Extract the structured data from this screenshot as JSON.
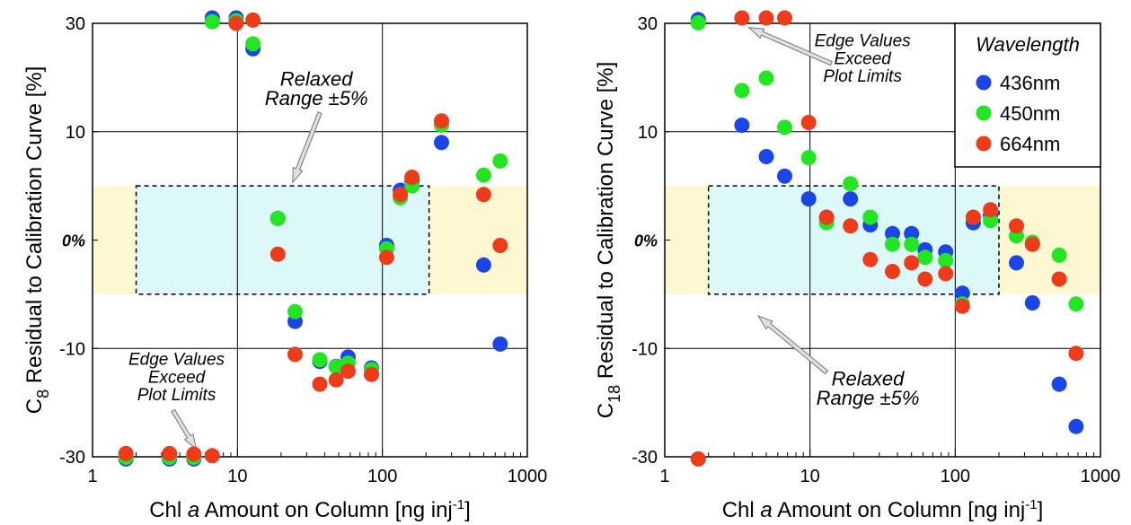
{
  "chart_data": [
    {
      "type": "scatter",
      "panel": "left",
      "x_scale": "log",
      "xlim": [
        1,
        1000
      ],
      "ylim": [
        -30,
        30
      ],
      "grid": true,
      "x_ticks": [
        "1",
        "10",
        "100",
        "1000"
      ],
      "y_ticks": [
        "30",
        "10",
        "0%",
        "-10",
        "-30"
      ],
      "xlabel": {
        "pre": "Chl ",
        "italic": "a",
        "mid": " Amount on Column [ng inj",
        "sup": "-1",
        "post": "]"
      },
      "ylabel": {
        "pre": "C",
        "sub": "8",
        "post": " Residual to Calibration Curve [%]"
      },
      "bands": [
        {
          "name": "yellow-band",
          "x": [
            1,
            1000
          ],
          "y": [
            -5,
            5
          ],
          "color": "#fdf7d2"
        },
        {
          "name": "cyan-box",
          "x": [
            2,
            210
          ],
          "y": [
            -5,
            5
          ],
          "color": "#dcf8f8"
        }
      ],
      "annotations": [
        {
          "name": "relaxed-range",
          "lines": [
            "Relaxed",
            "Range ±5%"
          ],
          "text_at": [
            35,
            18.5
          ],
          "line_gap": 3.6,
          "size": "big",
          "arrow_from": [
            37,
            13.5
          ],
          "arrow_to": [
            24,
            5.3
          ]
        },
        {
          "name": "edge-values",
          "lines": [
            "Edge Values",
            "Exceed",
            "Plot Limits"
          ],
          "text_at": [
            3.8,
            -13
          ],
          "line_gap": 3.3,
          "size": "normal",
          "arrow_from": [
            3.6,
            -21.5
          ],
          "arrow_to": [
            5.2,
            -28.6
          ]
        }
      ],
      "series": [
        {
          "name": "436nm",
          "color": "#1a46e8",
          "points": [
            [
              1.7,
              -30.4
            ],
            [
              3.4,
              -30.4
            ],
            [
              5,
              -30.4
            ],
            [
              6.7,
              31
            ],
            [
              9.8,
              31
            ],
            [
              12.8,
              25.3
            ],
            [
              19,
              2
            ],
            [
              25,
              -7.5
            ],
            [
              37,
              -12.4
            ],
            [
              48,
              -13.3
            ],
            [
              58,
              -11.6
            ],
            [
              84,
              -13.6
            ],
            [
              107,
              -0.5
            ],
            [
              133,
              4.6
            ],
            [
              160,
              5.4
            ],
            [
              256,
              9
            ],
            [
              500,
              -2.3
            ],
            [
              650,
              -9.6
            ]
          ]
        },
        {
          "name": "450nm",
          "color": "#22e622",
          "points": [
            [
              1.7,
              -30.1
            ],
            [
              3.4,
              -30.1
            ],
            [
              5,
              -30.1
            ],
            [
              6.7,
              30.3
            ],
            [
              9.8,
              30.5
            ],
            [
              12.8,
              26.2
            ],
            [
              19,
              2
            ],
            [
              25,
              -6.6
            ],
            [
              37,
              -12.1
            ],
            [
              48,
              -13.4
            ],
            [
              58,
              -12.7
            ],
            [
              84,
              -13.9
            ],
            [
              107,
              -0.8
            ],
            [
              133,
              3.9
            ],
            [
              160,
              5
            ],
            [
              256,
              11.2
            ],
            [
              500,
              6
            ],
            [
              650,
              7.3
            ]
          ]
        },
        {
          "name": "664nm",
          "color": "#ee3b1a",
          "points": [
            [
              1.7,
              -29.4
            ],
            [
              3.4,
              -29.4
            ],
            [
              5,
              -29.5
            ],
            [
              6.7,
              -29.8
            ],
            [
              9.8,
              30
            ],
            [
              12.8,
              30.6
            ],
            [
              19,
              -1.3
            ],
            [
              25,
              -11.1
            ],
            [
              37,
              -16.6
            ],
            [
              48,
              -15.8
            ],
            [
              58,
              -14.2
            ],
            [
              84,
              -14.8
            ],
            [
              107,
              -1.6
            ],
            [
              133,
              4.2
            ],
            [
              160,
              5.8
            ],
            [
              256,
              12
            ],
            [
              500,
              4.2
            ],
            [
              650,
              -0.5
            ]
          ]
        }
      ]
    },
    {
      "type": "scatter",
      "panel": "right",
      "x_scale": "log",
      "xlim": [
        1,
        1000
      ],
      "ylim": [
        -30,
        30
      ],
      "grid": true,
      "x_ticks": [
        "1",
        "10",
        "100",
        "1000"
      ],
      "y_ticks": [
        "30",
        "10",
        "0%",
        "-10",
        "-30"
      ],
      "xlabel": {
        "pre": "Chl ",
        "italic": "a",
        "mid": " Amount on Column [ng inj",
        "sup": "-1",
        "post": "]"
      },
      "ylabel": {
        "pre": "C",
        "sub": "18",
        "post": " Residual to Calibration Curve [%]"
      },
      "legend": {
        "title": "Wavelength",
        "position": "top-right"
      },
      "bands": [
        {
          "name": "yellow-band",
          "x": [
            1,
            1000
          ],
          "y": [
            -5,
            5
          ],
          "color": "#fdf7d2"
        },
        {
          "name": "cyan-box",
          "x": [
            2,
            200
          ],
          "y": [
            -5,
            5
          ],
          "color": "#dcf8f8"
        }
      ],
      "annotations": [
        {
          "name": "edge-values",
          "lines": [
            "Edge Values",
            "Exceed",
            "Plot Limits"
          ],
          "text_at": [
            23,
            25.8
          ],
          "line_gap": 3.3,
          "size": "normal",
          "arrow_from": [
            14,
            22.6
          ],
          "arrow_to": [
            3.8,
            29.2
          ]
        },
        {
          "name": "relaxed-range",
          "lines": [
            "Relaxed",
            "Range ±5%"
          ],
          "text_at": [
            25,
            -16.8
          ],
          "line_gap": 3.6,
          "size": "big",
          "arrow_from": [
            13,
            -14.4
          ],
          "arrow_to": [
            4.4,
            -7
          ]
        }
      ],
      "series": [
        {
          "name": "436nm",
          "color": "#1a46e8",
          "points": [
            [
              1.7,
              30.7
            ],
            [
              3.4,
              11.2
            ],
            [
              5,
              7.7
            ],
            [
              6.7,
              5.9
            ],
            [
              9.8,
              3.8
            ],
            [
              13,
              2.1
            ],
            [
              19,
              3.8
            ],
            [
              26,
              1.4
            ],
            [
              37,
              0.6
            ],
            [
              50,
              0.6
            ],
            [
              62,
              -0.9
            ],
            [
              86,
              -1.1
            ],
            [
              112,
              -4.9
            ],
            [
              133,
              1.6
            ],
            [
              175,
              2.3
            ],
            [
              264,
              -2.1
            ],
            [
              340,
              -5.8
            ],
            [
              520,
              -16.6
            ],
            [
              680,
              -24.4
            ]
          ]
        },
        {
          "name": "450nm",
          "color": "#22e622",
          "points": [
            [
              1.7,
              30.1
            ],
            [
              3.4,
              17.6
            ],
            [
              5,
              19.9
            ],
            [
              6.7,
              10.8
            ],
            [
              9.8,
              7.6
            ],
            [
              13,
              1.6
            ],
            [
              19,
              5.2
            ],
            [
              26,
              2.1
            ],
            [
              37,
              -0.4
            ],
            [
              50,
              -0.4
            ],
            [
              62,
              -1.6
            ],
            [
              86,
              -1.9
            ],
            [
              112,
              -5.9
            ],
            [
              133,
              2.1
            ],
            [
              175,
              1.8
            ],
            [
              264,
              0.4
            ],
            [
              340,
              -0.2
            ],
            [
              520,
              -1.4
            ],
            [
              680,
              -5.9
            ]
          ]
        },
        {
          "name": "664nm",
          "color": "#ee3b1a",
          "points": [
            [
              1.7,
              -30.4
            ],
            [
              3.4,
              31
            ],
            [
              5,
              31
            ],
            [
              6.7,
              31
            ],
            [
              9.8,
              11.7
            ],
            [
              13,
              2.1
            ],
            [
              19,
              1.3
            ],
            [
              26,
              -1.8
            ],
            [
              37,
              -2.9
            ],
            [
              50,
              -2.1
            ],
            [
              62,
              -3.6
            ],
            [
              86,
              -3.1
            ],
            [
              112,
              -6.1
            ],
            [
              133,
              2.1
            ],
            [
              175,
              2.8
            ],
            [
              264,
              1.3
            ],
            [
              340,
              -0.4
            ],
            [
              520,
              -3.6
            ],
            [
              680,
              -10.9
            ]
          ]
        }
      ]
    }
  ]
}
